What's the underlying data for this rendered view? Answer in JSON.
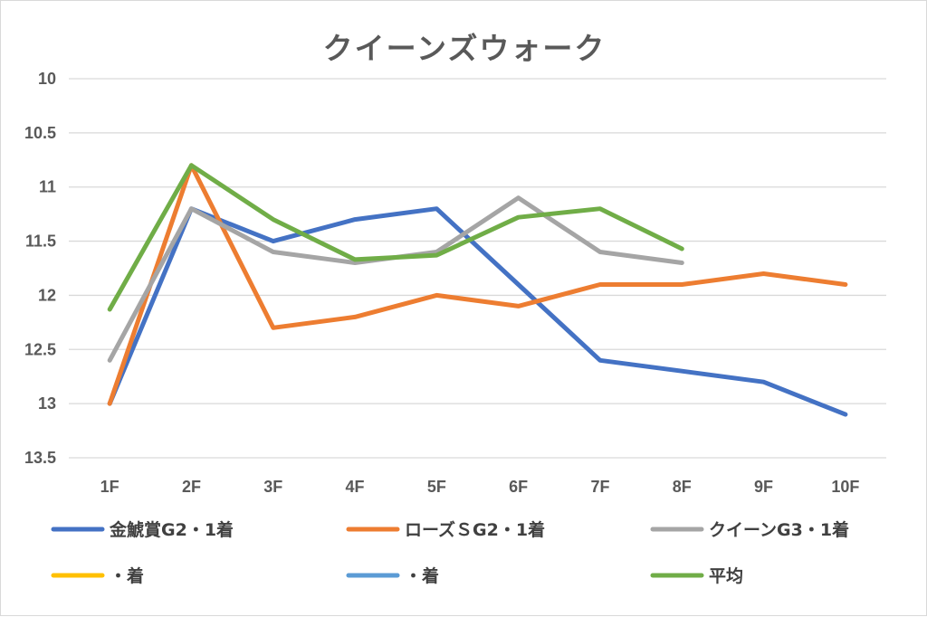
{
  "chart_data": {
    "type": "line",
    "title": "クイーンズウォーク",
    "categories": [
      "1F",
      "2F",
      "3F",
      "4F",
      "5F",
      "6F",
      "7F",
      "8F",
      "9F",
      "10F"
    ],
    "y_ticks": [
      "10",
      "10.5",
      "11",
      "11.5",
      "12",
      "12.5",
      "13",
      "13.5"
    ],
    "ylim": [
      10,
      13.5
    ],
    "y_reversed": true,
    "grid": true,
    "legend_position": "bottom",
    "series": [
      {
        "name": "金鯱賞G2・1着",
        "color": "#4472c4",
        "values": [
          13.0,
          11.2,
          11.5,
          11.3,
          11.2,
          11.9,
          12.6,
          12.7,
          12.8,
          13.1
        ]
      },
      {
        "name": "ローズＳG2・1着",
        "color": "#ed7d31",
        "values": [
          13.0,
          10.8,
          12.3,
          12.2,
          12.0,
          12.1,
          11.9,
          11.9,
          11.8,
          11.9
        ]
      },
      {
        "name": "クイーンG3・1着",
        "color": "#a5a5a5",
        "values": [
          12.6,
          11.2,
          11.6,
          11.7,
          11.6,
          11.1,
          11.6,
          11.7,
          null,
          null
        ]
      },
      {
        "name": "・着",
        "color": "#ffc000",
        "values": [
          null,
          null,
          null,
          null,
          null,
          null,
          null,
          null,
          null,
          null
        ]
      },
      {
        "name": "・着",
        "color": "#5b9bd5",
        "values": [
          null,
          null,
          null,
          null,
          null,
          null,
          null,
          null,
          null,
          null
        ]
      },
      {
        "name": "平均",
        "color": "#70ad47",
        "values": [
          12.13,
          10.8,
          11.3,
          11.67,
          11.63,
          11.28,
          11.2,
          11.57,
          null,
          null
        ]
      }
    ]
  }
}
